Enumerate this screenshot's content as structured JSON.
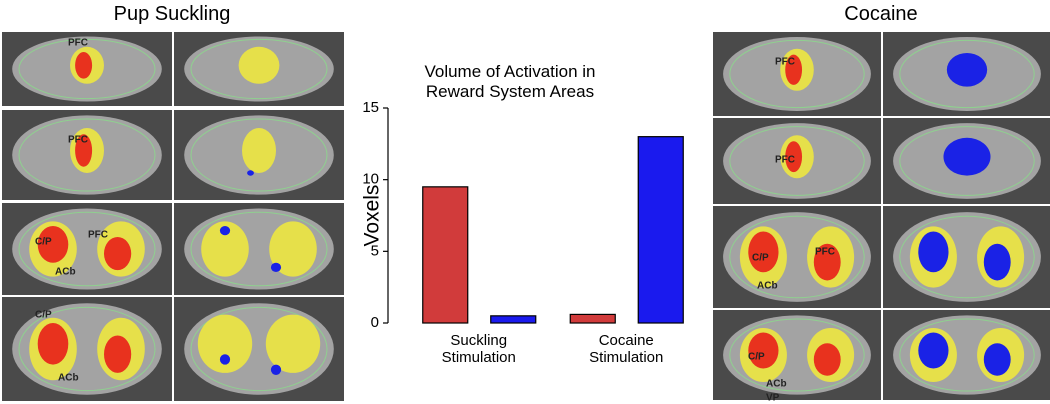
{
  "left_panel": {
    "title": "Pup Suckling",
    "labels": [
      "PFC",
      "PFC",
      "C/P",
      "PFC",
      "ACb",
      "C/P",
      "ACb"
    ]
  },
  "right_panel": {
    "title": "Cocaine",
    "labels": [
      "PFC",
      "PFC",
      "C/P",
      "PFC",
      "ACb",
      "C/P",
      "ACb",
      "VP"
    ]
  },
  "chart_data": {
    "type": "bar",
    "title": "Volume of Activation in Reward System Areas",
    "y_label": "Voxels",
    "categories": [
      "Suckling Stimulation",
      "Cocaine Stimulation"
    ],
    "series": [
      {
        "color": "#d13b3b",
        "values": [
          9.5,
          0.6
        ]
      },
      {
        "color": "#1a1aee",
        "values": [
          0.5,
          13
        ]
      }
    ],
    "ylim": [
      0,
      15
    ],
    "yticks": [
      0,
      5,
      10,
      15
    ]
  }
}
